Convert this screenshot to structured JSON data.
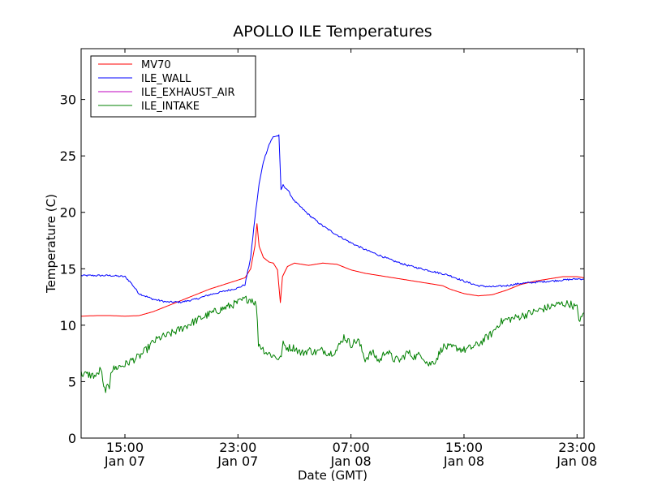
{
  "chart_data": {
    "type": "line",
    "title": "APOLLO ILE Temperatures",
    "xlabel": "Date (GMT)",
    "ylabel": "Temperature (C)",
    "x_unit": "hours",
    "x_tick_labels": [
      {
        "x": 15,
        "time": "15:00",
        "date": "Jan 07"
      },
      {
        "x": 23,
        "time": "23:00",
        "date": "Jan 07"
      },
      {
        "x": 31,
        "time": "07:00",
        "date": "Jan 08"
      },
      {
        "x": 39,
        "time": "15:00",
        "date": "Jan 08"
      },
      {
        "x": 47,
        "time": "23:00",
        "date": "Jan 08"
      }
    ],
    "xlim": [
      11.9,
      47.5
    ],
    "ylim": [
      0,
      34.5
    ],
    "yticks": [
      0,
      5,
      10,
      15,
      20,
      25,
      30
    ],
    "grid": false,
    "legend_position": "top-left",
    "series": [
      {
        "name": "MV70",
        "color": "#ff0000",
        "noise": 0,
        "points": [
          [
            11.9,
            10.8
          ],
          [
            13.0,
            10.85
          ],
          [
            14.0,
            10.85
          ],
          [
            15.0,
            10.8
          ],
          [
            16.0,
            10.85
          ],
          [
            17.0,
            11.2
          ],
          [
            18.0,
            11.7
          ],
          [
            19.0,
            12.2
          ],
          [
            20.0,
            12.7
          ],
          [
            21.0,
            13.2
          ],
          [
            22.0,
            13.6
          ],
          [
            23.0,
            14.0
          ],
          [
            23.5,
            14.2
          ],
          [
            23.9,
            15.0
          ],
          [
            24.2,
            17.0
          ],
          [
            24.35,
            19.0
          ],
          [
            24.5,
            17.0
          ],
          [
            24.8,
            16.0
          ],
          [
            25.2,
            15.6
          ],
          [
            25.5,
            15.5
          ],
          [
            25.8,
            14.9
          ],
          [
            26.0,
            12.0
          ],
          [
            26.15,
            14.3
          ],
          [
            26.5,
            15.2
          ],
          [
            27.0,
            15.5
          ],
          [
            28.0,
            15.3
          ],
          [
            29.0,
            15.5
          ],
          [
            30.0,
            15.4
          ],
          [
            31.0,
            14.9
          ],
          [
            32.0,
            14.6
          ],
          [
            33.0,
            14.4
          ],
          [
            34.0,
            14.2
          ],
          [
            35.0,
            14.0
          ],
          [
            36.0,
            13.8
          ],
          [
            37.0,
            13.6
          ],
          [
            37.5,
            13.5
          ],
          [
            38.0,
            13.2
          ],
          [
            39.0,
            12.8
          ],
          [
            40.0,
            12.6
          ],
          [
            41.0,
            12.7
          ],
          [
            42.0,
            13.1
          ],
          [
            43.0,
            13.6
          ],
          [
            44.0,
            13.9
          ],
          [
            45.0,
            14.1
          ],
          [
            46.0,
            14.3
          ],
          [
            47.0,
            14.3
          ],
          [
            47.5,
            14.2
          ]
        ]
      },
      {
        "name": "ILE_WALL",
        "color": "#0000ff",
        "noise": 0.08,
        "points": [
          [
            11.9,
            14.4
          ],
          [
            13.0,
            14.4
          ],
          [
            14.0,
            14.4
          ],
          [
            14.5,
            14.35
          ],
          [
            15.0,
            14.3
          ],
          [
            15.4,
            13.8
          ],
          [
            16.0,
            12.8
          ],
          [
            17.0,
            12.3
          ],
          [
            18.0,
            12.05
          ],
          [
            19.0,
            12.05
          ],
          [
            20.0,
            12.3
          ],
          [
            21.0,
            12.7
          ],
          [
            22.0,
            13.0
          ],
          [
            23.0,
            13.3
          ],
          [
            23.5,
            13.6
          ],
          [
            23.9,
            16.0
          ],
          [
            24.2,
            19.5
          ],
          [
            24.5,
            22.5
          ],
          [
            24.8,
            24.5
          ],
          [
            25.2,
            26.0
          ],
          [
            25.5,
            26.7
          ],
          [
            25.9,
            26.8
          ],
          [
            26.05,
            22.0
          ],
          [
            26.2,
            22.4
          ],
          [
            26.5,
            22.0
          ],
          [
            27.0,
            21.0
          ],
          [
            28.0,
            19.8
          ],
          [
            29.0,
            18.8
          ],
          [
            30.0,
            18.0
          ],
          [
            31.0,
            17.3
          ],
          [
            32.0,
            16.7
          ],
          [
            33.0,
            16.2
          ],
          [
            34.0,
            15.7
          ],
          [
            35.0,
            15.3
          ],
          [
            36.0,
            15.0
          ],
          [
            37.0,
            14.7
          ],
          [
            38.0,
            14.4
          ],
          [
            39.0,
            13.9
          ],
          [
            40.0,
            13.5
          ],
          [
            41.0,
            13.4
          ],
          [
            42.0,
            13.5
          ],
          [
            43.0,
            13.7
          ],
          [
            44.0,
            13.8
          ],
          [
            45.0,
            13.9
          ],
          [
            46.0,
            14.0
          ],
          [
            47.0,
            14.1
          ],
          [
            47.5,
            14.1
          ]
        ]
      },
      {
        "name": "ILE_EXHAUST_AIR",
        "color": "#bf00bf",
        "noise": 0,
        "points": []
      },
      {
        "name": "ILE_INTAKE",
        "color": "#008000",
        "noise": 0.35,
        "points": [
          [
            11.9,
            5.7
          ],
          [
            12.5,
            5.6
          ],
          [
            13.0,
            5.5
          ],
          [
            13.3,
            6.2
          ],
          [
            13.5,
            4.3
          ],
          [
            13.9,
            4.5
          ],
          [
            14.0,
            6.0
          ],
          [
            14.5,
            6.3
          ],
          [
            15.0,
            6.5
          ],
          [
            15.5,
            6.9
          ],
          [
            16.0,
            7.2
          ],
          [
            16.5,
            7.8
          ],
          [
            17.0,
            8.5
          ],
          [
            17.5,
            8.9
          ],
          [
            18.0,
            9.1
          ],
          [
            19.0,
            9.7
          ],
          [
            20.0,
            10.4
          ],
          [
            21.0,
            11.0
          ],
          [
            22.0,
            11.5
          ],
          [
            23.0,
            12.0
          ],
          [
            23.5,
            12.3
          ],
          [
            24.0,
            12.3
          ],
          [
            24.3,
            11.8
          ],
          [
            24.45,
            8.4
          ],
          [
            24.7,
            8.0
          ],
          [
            25.0,
            7.6
          ],
          [
            25.5,
            7.3
          ],
          [
            26.0,
            7.0
          ],
          [
            26.2,
            8.3
          ],
          [
            26.5,
            8.0
          ],
          [
            27.0,
            8.0
          ],
          [
            27.5,
            7.5
          ],
          [
            28.0,
            7.8
          ],
          [
            28.5,
            7.6
          ],
          [
            29.0,
            7.8
          ],
          [
            29.5,
            7.5
          ],
          [
            30.0,
            7.8
          ],
          [
            30.5,
            9.0
          ],
          [
            31.0,
            8.3
          ],
          [
            31.5,
            8.7
          ],
          [
            32.0,
            7.0
          ],
          [
            32.5,
            7.6
          ],
          [
            33.0,
            6.8
          ],
          [
            33.5,
            7.8
          ],
          [
            34.0,
            7.0
          ],
          [
            34.5,
            6.9
          ],
          [
            35.0,
            7.6
          ],
          [
            35.5,
            7.2
          ],
          [
            36.0,
            7.4
          ],
          [
            36.5,
            6.5
          ],
          [
            37.0,
            6.9
          ],
          [
            37.5,
            8.1
          ],
          [
            38.0,
            8.0
          ],
          [
            38.5,
            8.0
          ],
          [
            39.0,
            7.8
          ],
          [
            39.5,
            8.0
          ],
          [
            40.0,
            8.3
          ],
          [
            40.5,
            8.8
          ],
          [
            41.0,
            9.3
          ],
          [
            41.5,
            10.2
          ],
          [
            42.0,
            10.5
          ],
          [
            42.5,
            10.6
          ],
          [
            43.0,
            10.8
          ],
          [
            43.5,
            11.0
          ],
          [
            44.0,
            11.2
          ],
          [
            44.5,
            11.4
          ],
          [
            45.0,
            11.6
          ],
          [
            45.5,
            11.8
          ],
          [
            46.0,
            11.9
          ],
          [
            46.5,
            11.9
          ],
          [
            47.0,
            11.5
          ],
          [
            47.2,
            10.3
          ],
          [
            47.5,
            11.1
          ]
        ]
      }
    ]
  }
}
